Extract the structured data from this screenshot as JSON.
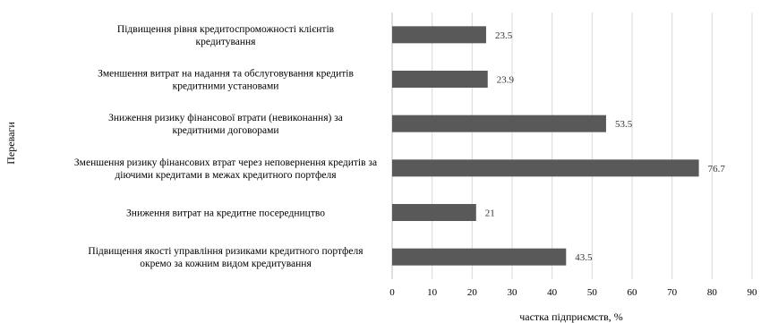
{
  "chart_data": {
    "type": "bar",
    "orientation": "horizontal",
    "categories": [
      [
        "Підвищення рівня кредитоспроможності клієнтів",
        "кредитування"
      ],
      [
        "Зменшення витрат на надання та обслуговування кредитів",
        "кредитними установами"
      ],
      [
        "Зниження ризику фінансової втрати (невиконання) за",
        "кредитними договорами"
      ],
      [
        "Зменшення ризику фінансових втрат через неповернення кредитів за",
        "діючими кредитами в межах кредитного портфеля"
      ],
      [
        "Зниження витрат на кредитне посередництво",
        ""
      ],
      [
        "Підвищення якості управління ризиками кредитного портфеля",
        "окремо за кожним видом кредитування"
      ]
    ],
    "values": [
      23.5,
      23.9,
      53.5,
      76.7,
      21,
      43.5
    ],
    "value_labels": [
      "23.5",
      "23.9",
      "53.5",
      "76.7",
      "21",
      "43.5"
    ],
    "xlim": [
      0,
      90
    ],
    "xticks": [
      0,
      10,
      20,
      30,
      40,
      50,
      60,
      70,
      80,
      90
    ],
    "xlabel": "частка підприємств, %",
    "ylabel": "Переваги",
    "bar_color": "#595959",
    "gridlines": "vertical",
    "grid_color": "#d9d9d9"
  }
}
